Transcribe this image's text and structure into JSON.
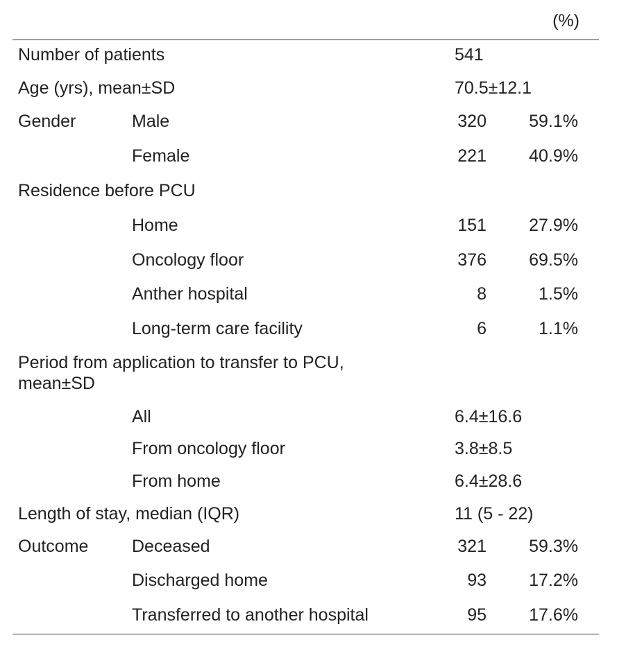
{
  "header": {
    "unit": "(%)"
  },
  "table": {
    "rows": [
      {
        "label": "Number of patients",
        "value": "541"
      },
      {
        "label": "Age (yrs), mean±SD",
        "value": "70.5±12.1"
      },
      {
        "label": "Gender",
        "sub": "Male",
        "count": "320",
        "percent": "59.1%"
      },
      {
        "sub": "Female",
        "count": "221",
        "percent": "40.9%"
      },
      {
        "label": "Residence before PCU"
      },
      {
        "sub": "Home",
        "count": "151",
        "percent": "27.9%"
      },
      {
        "sub": "Oncology floor",
        "count": "376",
        "percent": "69.5%"
      },
      {
        "sub": "Anther hospital",
        "count": "8",
        "percent": "1.5%"
      },
      {
        "sub": "Long-term care facility",
        "count": "6",
        "percent": "1.1%"
      },
      {
        "lines": [
          "Period from application to transfer to PCU,",
          "mean±SD"
        ]
      },
      {
        "sub": "All",
        "value": "6.4±16.6"
      },
      {
        "sub": "From oncology floor",
        "value": "3.8±8.5"
      },
      {
        "sub": "From home",
        "value": "6.4±28.6"
      },
      {
        "label": "Length of stay, median (IQR)",
        "value": "11 (5 - 22)"
      },
      {
        "label": "Outcome",
        "sub": "Deceased",
        "count": "321",
        "percent": "59.3%"
      },
      {
        "sub": "Discharged home",
        "count": "93",
        "percent": "17.2%"
      },
      {
        "sub": "Transferred to another hospital",
        "count": "95",
        "percent": "17.6%"
      }
    ]
  }
}
